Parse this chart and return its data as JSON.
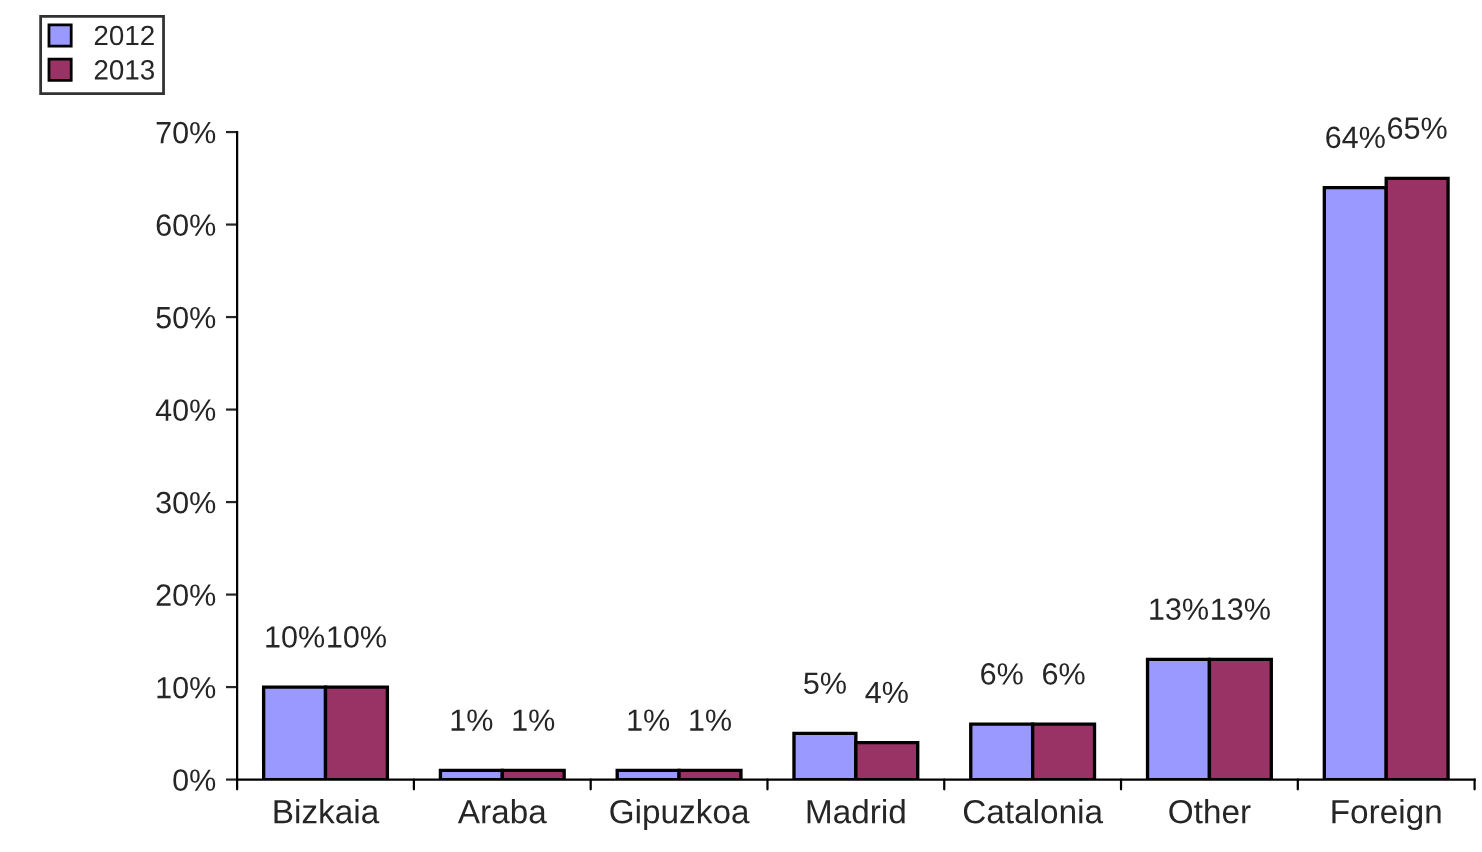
{
  "chart_data": {
    "type": "bar",
    "categories": [
      "Bizkaia",
      "Araba",
      "Gipuzkoa",
      "Madrid",
      "Catalonia",
      "Other",
      "Foreign"
    ],
    "series": [
      {
        "name": "2012",
        "color": "#9999ff",
        "values": [
          10,
          1,
          1,
          5,
          6,
          13,
          64
        ],
        "value_labels": [
          "10%",
          "1%",
          "1%",
          "5%",
          "6%",
          "13%",
          "64%"
        ]
      },
      {
        "name": "2013",
        "color": "#993366",
        "values": [
          10,
          1,
          1,
          4,
          6,
          13,
          65
        ],
        "value_labels": [
          "10%",
          "1%",
          "1%",
          "4%",
          "6%",
          "13%",
          "65%"
        ]
      }
    ],
    "ylim": [
      0,
      70
    ],
    "yticks": [
      {
        "value": 0,
        "label": "0%"
      },
      {
        "value": 10,
        "label": "10%"
      },
      {
        "value": 20,
        "label": "20%"
      },
      {
        "value": 30,
        "label": "30%"
      },
      {
        "value": 40,
        "label": "40%"
      },
      {
        "value": 50,
        "label": "50%"
      },
      {
        "value": 60,
        "label": "60%"
      },
      {
        "value": 70,
        "label": "70%"
      }
    ],
    "grid": false,
    "legend": "top left"
  }
}
